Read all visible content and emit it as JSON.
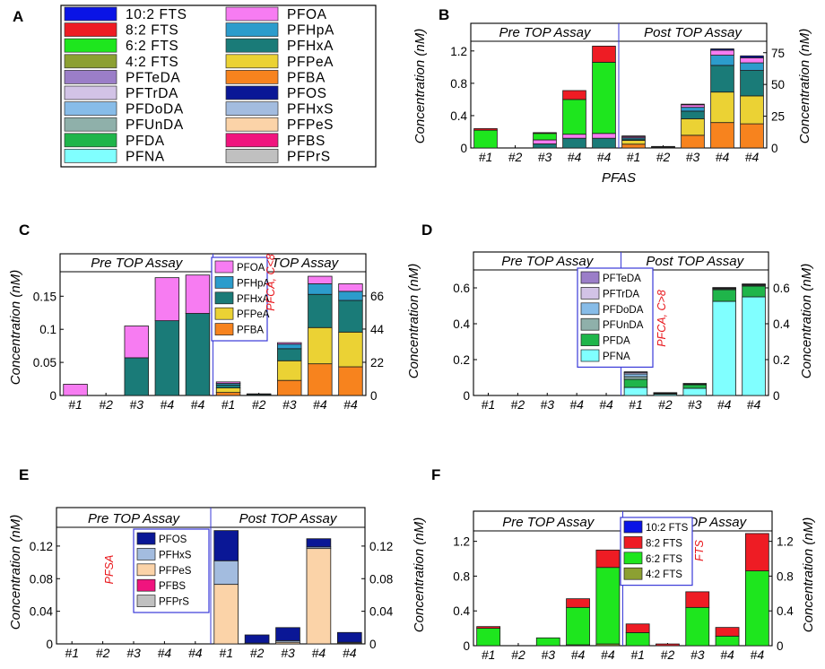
{
  "colors": {
    "10:2 FTS": "#0a14e6",
    "8:2 FTS": "#ee1c24",
    "6:2 FTS": "#1ee61e",
    "4:2 FTS": "#8ca032",
    "PFTeDA": "#9b7ec8",
    "PFTrDA": "#d2c3e6",
    "PFDoDA": "#87bce8",
    "PFUnDA": "#8fb0aa",
    "PFDA": "#1fb54a",
    "PFNA": "#80ffff",
    "PFOA": "#f77cf2",
    "PFHpA": "#2c9ccc",
    "PFHxA": "#1a7b78",
    "PFPeA": "#ebd234",
    "PFBA": "#f7831e",
    "PFOS": "#0a1796",
    "PFHxS": "#a3bcdf",
    "PFPeS": "#fbd3a8",
    "PFBS": "#f0147e",
    "PFPrS": "#c0c0c0"
  },
  "icons": {
    "legend_swatch": "color-swatch-icon"
  },
  "legend_panel": {
    "label": "A",
    "column1": [
      "10:2 FTS",
      "8:2 FTS",
      "6:2 FTS",
      "4:2 FTS",
      "PFTeDA",
      "PFTrDA",
      "PFDoDA",
      "PFUnDA",
      "PFDA",
      "PFNA"
    ],
    "column2": [
      "PFOA",
      "PFHpA",
      "PFHxA",
      "PFPeA",
      "PFBA",
      "PFOS",
      "PFHxS",
      "PFPeS",
      "PFBS",
      "PFPrS"
    ]
  },
  "chart_data": [
    {
      "id": "B",
      "type": "bar",
      "stacked": true,
      "categories": [
        "#1",
        "#2",
        "#3",
        "#4",
        "#4",
        "#1",
        "#2",
        "#3",
        "#4",
        "#4"
      ],
      "groups": [
        "Pre TOP Assay",
        "Post TOP Assay"
      ],
      "ylabel": "Concentration (nM)",
      "ylabel_right": "Concentration (nM)",
      "xlabel": "PFAS",
      "ylim": [
        0,
        1.32
      ],
      "yticks": [
        "0",
        "0.4",
        "0.8",
        "1.2"
      ],
      "ytick_values": [
        0,
        0.4,
        0.8,
        1.2
      ],
      "yticks_right": [
        "0",
        "25",
        "50",
        "75"
      ],
      "ylim_right": [
        0,
        84
      ],
      "series_left": [
        {
          "name": "PFHxA",
          "values": [
            0,
            0,
            0.05,
            0.12,
            0.12
          ]
        },
        {
          "name": "PFOA",
          "values": [
            0,
            0,
            0.05,
            0.05,
            0.06
          ]
        },
        {
          "name": "6:2 FTS",
          "values": [
            0.22,
            0,
            0.08,
            0.43,
            0.88
          ]
        },
        {
          "name": "8:2 FTS",
          "values": [
            0.02,
            0,
            0.01,
            0.11,
            0.2
          ]
        }
      ],
      "series_right": [
        {
          "name": "PFBA",
          "values": [
            3,
            0,
            10,
            20,
            19
          ]
        },
        {
          "name": "PFPeA",
          "values": [
            3,
            0,
            13,
            24,
            22
          ]
        },
        {
          "name": "PFHxA",
          "values": [
            1,
            0.5,
            6,
            21,
            20
          ]
        },
        {
          "name": "PFHpA",
          "values": [
            1,
            0.2,
            3,
            8,
            6
          ]
        },
        {
          "name": "PFOA",
          "values": [
            1,
            0.3,
            2,
            4,
            4
          ]
        },
        {
          "name": "PFOS",
          "values": [
            0.5,
            0.2,
            0.5,
            1,
            1.5
          ]
        }
      ]
    },
    {
      "id": "C",
      "type": "bar",
      "stacked": true,
      "categories": [
        "#1",
        "#2",
        "#3",
        "#4",
        "#4",
        "#1",
        "#2",
        "#3",
        "#4",
        "#4"
      ],
      "groups": [
        "Pre TOP Assay",
        "Post TOP Assay"
      ],
      "ylabel": "Concentration (nM)",
      "ylim": [
        0,
        0.187
      ],
      "yticks": [
        "0",
        "0.05",
        "0.1",
        "0.15"
      ],
      "ytick_values": [
        0,
        0.05,
        0.1,
        0.15
      ],
      "yticks_right": [
        "0",
        "22",
        "44",
        "66"
      ],
      "ylim_right": [
        0,
        82
      ],
      "legend": [
        "PFOA",
        "PFHpA",
        "PFHxA",
        "PFPeA",
        "PFBA"
      ],
      "legend_note": "PFCA, C<8",
      "series_left": [
        {
          "name": "PFHxA",
          "values": [
            0,
            0,
            0.057,
            0.113,
            0.124
          ]
        },
        {
          "name": "PFOA",
          "values": [
            0.017,
            0,
            0.048,
            0.065,
            0.058
          ]
        }
      ],
      "series_right": [
        {
          "name": "PFBA",
          "values": [
            2,
            0,
            10,
            21,
            19
          ]
        },
        {
          "name": "PFPeA",
          "values": [
            3,
            0,
            13,
            24,
            23
          ]
        },
        {
          "name": "PFHxA",
          "values": [
            2,
            0.6,
            8,
            22,
            21
          ]
        },
        {
          "name": "PFHpA",
          "values": [
            1,
            0.3,
            3,
            7,
            6
          ]
        },
        {
          "name": "PFOA",
          "values": [
            1,
            0.2,
            1,
            5,
            5
          ]
        }
      ]
    },
    {
      "id": "D",
      "type": "bar",
      "stacked": true,
      "categories": [
        "#1",
        "#2",
        "#3",
        "#4",
        "#4",
        "#1",
        "#2",
        "#3",
        "#4",
        "#4"
      ],
      "groups": [
        "Pre TOP Assay",
        "Post TOP Assay"
      ],
      "ylabel": "Concentration (nM)",
      "ylabel_right": "Concentration (nM)",
      "ylim": [
        0,
        0.7
      ],
      "yticks": [
        "0",
        "0.2",
        "0.4",
        "0.6"
      ],
      "ytick_values": [
        0,
        0.2,
        0.4,
        0.6
      ],
      "yticks_right": [
        "0",
        "0.2",
        "0.4",
        "0.6"
      ],
      "legend": [
        "PFTeDA",
        "PFTrDA",
        "PFDoDA",
        "PFUnDA",
        "PFDA",
        "PFNA"
      ],
      "legend_note": "PFCA, C>8",
      "series": [
        {
          "name": "PFNA",
          "values": [
            0,
            0,
            0,
            0,
            0,
            0.045,
            0.007,
            0.04,
            0.525,
            0.55
          ]
        },
        {
          "name": "PFDA",
          "values": [
            0,
            0,
            0,
            0,
            0,
            0.045,
            0.005,
            0.02,
            0.065,
            0.06
          ]
        },
        {
          "name": "PFUnDA",
          "values": [
            0,
            0,
            0,
            0,
            0,
            0.015,
            0.001,
            0.003,
            0.005,
            0.005
          ]
        },
        {
          "name": "PFDoDA",
          "values": [
            0,
            0,
            0,
            0,
            0,
            0.015,
            0.001,
            0.002,
            0.003,
            0.003
          ]
        },
        {
          "name": "PFTrDA",
          "values": [
            0,
            0,
            0,
            0,
            0,
            0.007,
            0.001,
            0.001,
            0.002,
            0.002
          ]
        },
        {
          "name": "PFTeDA",
          "values": [
            0,
            0,
            0,
            0,
            0,
            0.005,
            0.001,
            0.001,
            0.002,
            0.002
          ]
        }
      ]
    },
    {
      "id": "E",
      "type": "bar",
      "stacked": true,
      "categories": [
        "#1",
        "#2",
        "#3",
        "#4",
        "#4",
        "#1",
        "#2",
        "#3",
        "#4",
        "#4"
      ],
      "groups": [
        "Pre TOP Assay",
        "Post TOP Assay"
      ],
      "ylabel": "Concentration (nM)",
      "ylim": [
        0,
        0.143
      ],
      "yticks": [
        "0",
        "0.04",
        "0.08",
        "0.12"
      ],
      "ytick_values": [
        0,
        0.04,
        0.08,
        0.12
      ],
      "yticks_right": [
        "0",
        "0.04",
        "0.08",
        "0.12"
      ],
      "legend": [
        "PFOS",
        "PFHxS",
        "PFPeS",
        "PFBS",
        "PFPrS"
      ],
      "legend_note": "PFSA",
      "series": [
        {
          "name": "PFPeS",
          "values": [
            0,
            0,
            0,
            0,
            0,
            0.073,
            0,
            0.002,
            0.117,
            0.001
          ]
        },
        {
          "name": "PFHxS",
          "values": [
            0,
            0,
            0,
            0,
            0,
            0.029,
            0.001,
            0.002,
            0.002,
            0.001
          ]
        },
        {
          "name": "PFOS",
          "values": [
            0,
            0,
            0,
            0,
            0,
            0.037,
            0.01,
            0.016,
            0.01,
            0.012
          ]
        }
      ]
    },
    {
      "id": "F",
      "type": "bar",
      "stacked": true,
      "categories": [
        "#1",
        "#2",
        "#3",
        "#4",
        "#4",
        "#1",
        "#2",
        "#3",
        "#4",
        "#4"
      ],
      "groups": [
        "Pre TOP Assay",
        "Post TOP Assay"
      ],
      "ylabel": "Concentration (nM)",
      "ylabel_right": "Concentration (nM)",
      "ylim": [
        0,
        1.32
      ],
      "yticks": [
        "0",
        "0.4",
        "0.8",
        "1.2"
      ],
      "ytick_values": [
        0,
        0.4,
        0.8,
        1.2
      ],
      "yticks_right": [
        "0",
        "0.4",
        "0.8",
        "1.2"
      ],
      "legend": [
        "10:2 FTS",
        "8:2 FTS",
        "6:2 FTS",
        "4:2 FTS"
      ],
      "legend_note": "FTS",
      "series": [
        {
          "name": "4:2 FTS",
          "values": [
            0,
            0,
            0,
            0.01,
            0.02,
            0,
            0,
            0,
            0,
            0
          ]
        },
        {
          "name": "6:2 FTS",
          "values": [
            0.2,
            0,
            0.09,
            0.43,
            0.88,
            0.15,
            0,
            0.44,
            0.11,
            0.86
          ]
        },
        {
          "name": "8:2 FTS",
          "values": [
            0.02,
            0,
            0,
            0.1,
            0.2,
            0.1,
            0.02,
            0.18,
            0.1,
            0.43
          ]
        },
        {
          "name": "10:2 FTS",
          "values": [
            0,
            0,
            0,
            0,
            0,
            0,
            0,
            0,
            0,
            0
          ]
        }
      ]
    }
  ]
}
